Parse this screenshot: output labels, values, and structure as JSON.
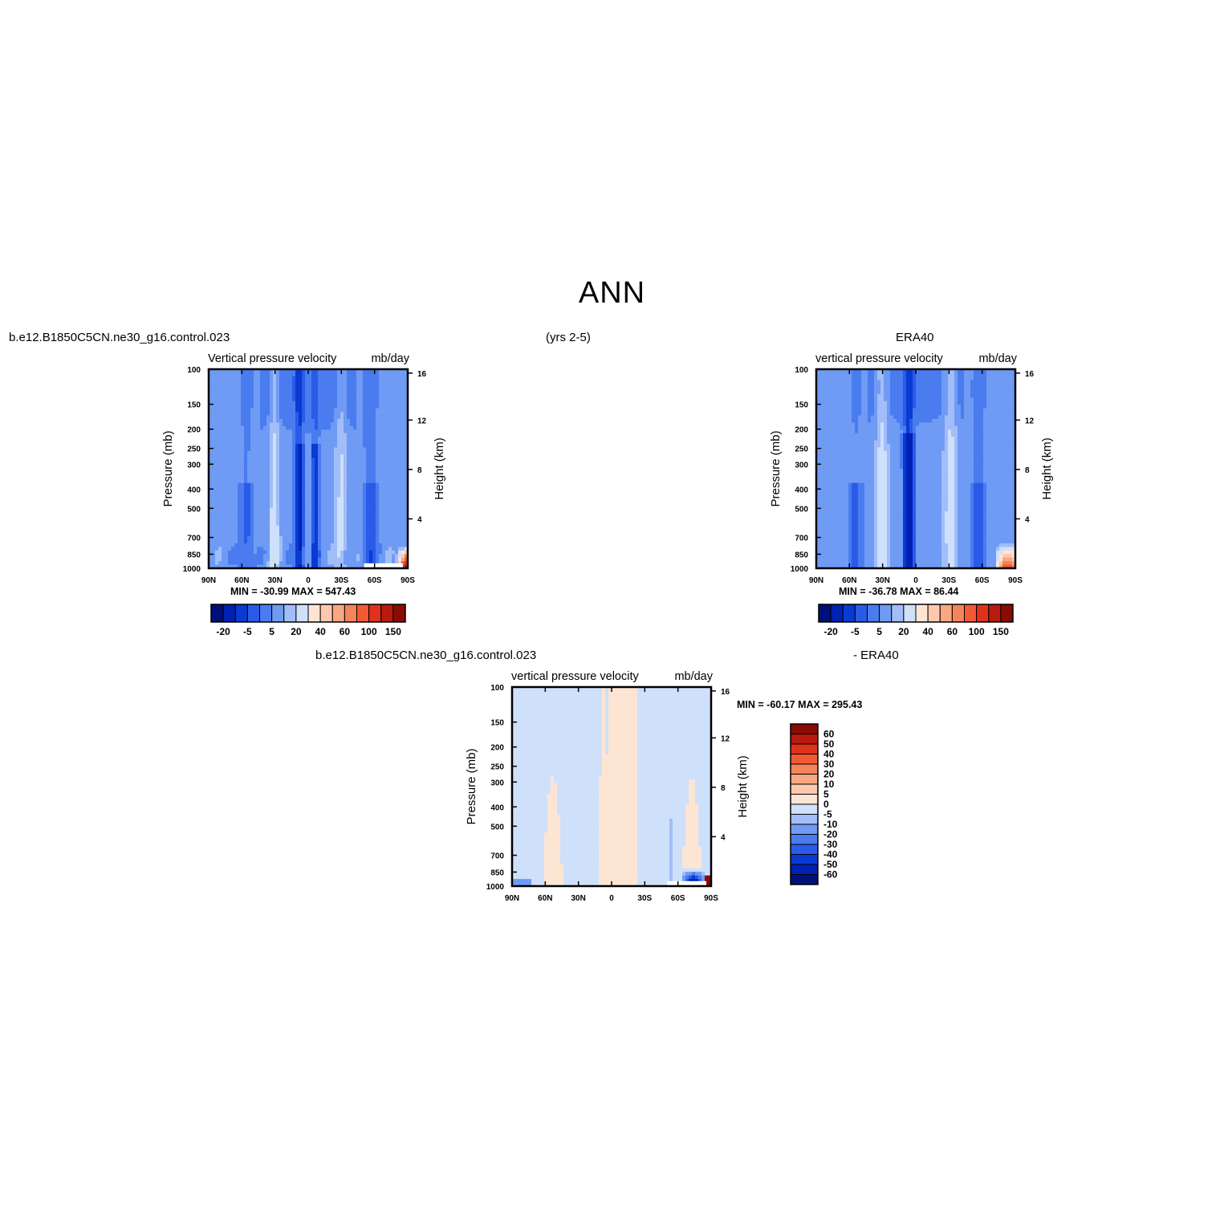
{
  "figure": {
    "title": "ANN",
    "left_header": "b.e12.B1850C5CN.ne30_g16.control.023",
    "center_header": "(yrs 2-5)",
    "right_header": "ERA40",
    "diff_header_left": "b.e12.B1850C5CN.ne30_g16.control.023",
    "diff_header_right": "- ERA40"
  },
  "colors": {
    "neg_scale": [
      "#00107a",
      "#0022b4",
      "#0a3ad4",
      "#2a5be8",
      "#4a7cf0",
      "#6f9bf5",
      "#a2bdf8",
      "#cfe0fb"
    ],
    "pos_scale": [
      "#fde5d4",
      "#fcc9ae",
      "#f9a882",
      "#f6845a",
      "#f25a35",
      "#e0321b",
      "#b81a0d",
      "#8a0b06"
    ]
  },
  "chart_data": [
    {
      "type": "heatmap",
      "title": "Vertical pressure velocity",
      "units": "mb/day",
      "ylabel": "Pressure (mb)",
      "y2label": "Height (km)",
      "x_ticks": [
        "90N",
        "60N",
        "30N",
        "0",
        "30S",
        "60S",
        "90S"
      ],
      "y_ticks": [
        100,
        150,
        200,
        250,
        300,
        400,
        500,
        700,
        850,
        1000
      ],
      "y2_ticks": [
        16,
        12,
        8,
        4
      ],
      "ylim": [
        1000,
        100
      ],
      "min_label": "MIN = -30.99",
      "max_label": "MAX = 547.43",
      "min": -30.99,
      "max": 547.43,
      "colorbar_labels": [
        "-20",
        "-5",
        "5",
        "20",
        "40",
        "60",
        "100",
        "150"
      ]
    },
    {
      "type": "heatmap",
      "title": "vertical pressure velocity",
      "units": "mb/day",
      "ylabel": "Pressure (mb)",
      "y2label": "Height (km)",
      "x_ticks": [
        "90N",
        "60N",
        "30N",
        "0",
        "30S",
        "60S",
        "90S"
      ],
      "y_ticks": [
        100,
        150,
        200,
        250,
        300,
        400,
        500,
        700,
        850,
        1000
      ],
      "y2_ticks": [
        16,
        12,
        8,
        4
      ],
      "ylim": [
        1000,
        100
      ],
      "min_label": "MIN = -36.78",
      "max_label": "MAX = 86.44",
      "min": -36.78,
      "max": 86.44,
      "colorbar_labels": [
        "-20",
        "-5",
        "5",
        "20",
        "40",
        "60",
        "100",
        "150"
      ]
    },
    {
      "type": "heatmap",
      "title": "vertical pressure velocity",
      "units": "mb/day",
      "ylabel": "Pressure (mb)",
      "y2label": "Height (km)",
      "x_ticks": [
        "90N",
        "60N",
        "30N",
        "0",
        "30S",
        "60S",
        "90S"
      ],
      "y_ticks": [
        100,
        150,
        200,
        250,
        300,
        400,
        500,
        700,
        850,
        1000
      ],
      "y2_ticks": [
        16,
        12,
        8,
        4
      ],
      "ylim": [
        1000,
        100
      ],
      "min_label": "MIN = -60.17",
      "max_label": "MAX = 295.43",
      "min": -60.17,
      "max": 295.43,
      "colorbar_labels": [
        "60",
        "50",
        "40",
        "30",
        "20",
        "10",
        "5",
        "0",
        "-5",
        "-10",
        "-20",
        "-30",
        "-40",
        "-50",
        "-60"
      ]
    }
  ]
}
